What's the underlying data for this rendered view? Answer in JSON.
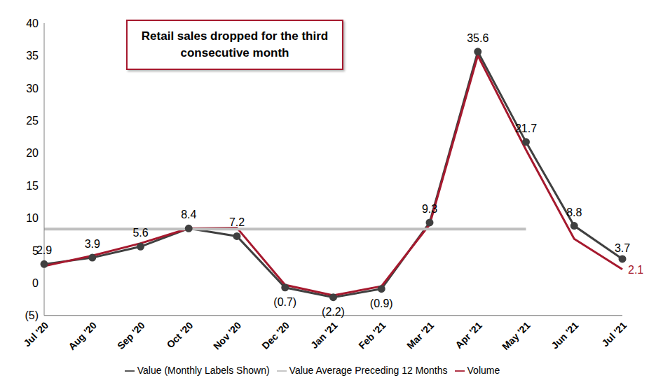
{
  "chart_data": {
    "type": "line",
    "annotation": "Retail sales dropped for the third consecutive month",
    "categories": [
      "Jul '20",
      "Aug '20",
      "Sep '20",
      "Oct '20",
      "Nov '20",
      "Dec '20",
      "Jan '21",
      "Feb '21",
      "Mar '21",
      "Apr '21",
      "May '21",
      "Jun '21",
      "Jul '21"
    ],
    "ylim": [
      -5,
      40
    ],
    "yticks": [
      {
        "value": -5,
        "label": "(5)"
      },
      0,
      5,
      10,
      15,
      20,
      25,
      30,
      35,
      40
    ],
    "grid": false,
    "legend": "bottom",
    "data_labels": true,
    "series": [
      {
        "name": "Value (Monthly Labels Shown)",
        "color": "#404040",
        "marker": "circle",
        "line_style": "solid",
        "values": [
          2.9,
          3.9,
          5.6,
          8.4,
          7.2,
          -0.7,
          -2.2,
          -0.9,
          9.3,
          35.6,
          21.7,
          8.8,
          3.7
        ],
        "value_labels": [
          "2.9",
          "3.9",
          "5.6",
          "8.4",
          "7.2",
          "(0.7)",
          "(2.2)",
          "(0.9)",
          "9.3",
          "35.6",
          "21.7",
          "8.8",
          "3.7"
        ]
      },
      {
        "name": "Volume",
        "color": "#a6192e",
        "line_style": "solid",
        "values": [
          2.6,
          4.2,
          6.1,
          8.4,
          8.5,
          -0.3,
          -1.9,
          -0.5,
          9.0,
          35.0,
          20.5,
          6.8,
          2.1
        ],
        "value_labels": [
          null,
          null,
          null,
          null,
          null,
          null,
          null,
          null,
          null,
          null,
          null,
          null,
          "2.1"
        ]
      },
      {
        "name": "Value Average Preceding 12 Months",
        "color": "#bfbfbf",
        "line_style": "solid",
        "values": [
          8.3,
          8.3,
          8.3,
          8.3,
          8.3,
          8.3,
          8.3,
          8.3,
          8.3,
          8.3,
          8.3,
          null,
          null
        ]
      }
    ]
  }
}
